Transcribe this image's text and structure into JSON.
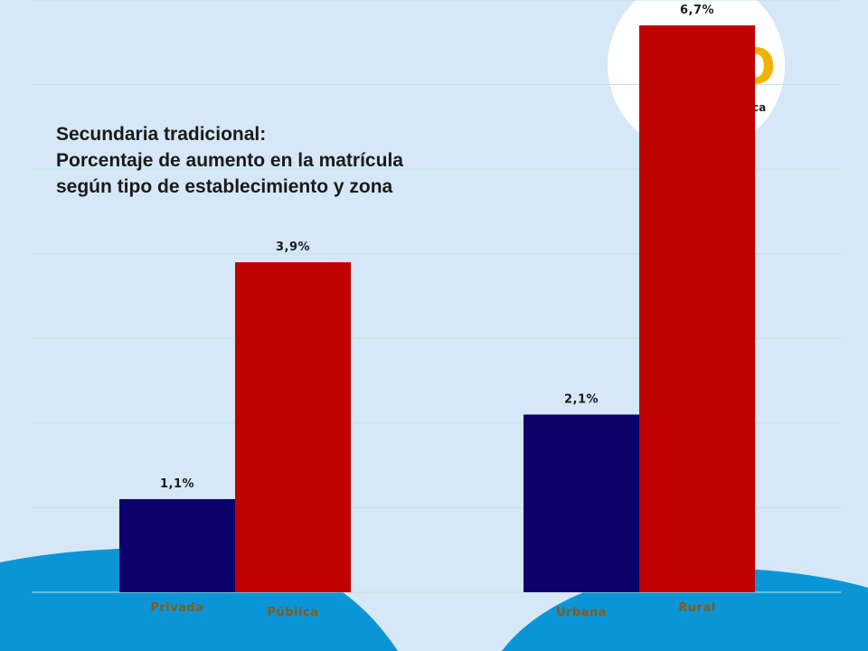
{
  "colors": {
    "background": "#d6e7f7",
    "wave": "#0a96d6",
    "gridline": "#bfe6d8",
    "series_navy": "#0c006a",
    "series_red": "#bf0000",
    "category_label": "#8a5a14",
    "logo_circle": "#ffffff"
  },
  "title_lines": [
    "Secundaria tradicional:",
    "Porcentaje de aumento en la matrícula",
    "según tipo de establecimiento y zona"
  ],
  "chart_data": {
    "type": "bar",
    "title": "Secundaria tradicional: Porcentaje de aumento en la matrícula según tipo de establecimiento y zona",
    "ylim": [
      0,
      7
    ],
    "grid": true,
    "groups": [
      {
        "bars": [
          {
            "category": "Privada",
            "value": 1.1,
            "label": "1,1%",
            "color": "#0c006a"
          },
          {
            "category": "Pública",
            "value": 3.9,
            "label": "3,9%",
            "color": "#bf0000"
          }
        ]
      },
      {
        "bars": [
          {
            "category": "Urbana",
            "value": 2.1,
            "label": "2,1%",
            "color": "#0c006a"
          },
          {
            "category": "Rural",
            "value": 6.7,
            "label": "6,7%",
            "color": "#bf0000"
          }
        ]
      }
    ]
  }
}
